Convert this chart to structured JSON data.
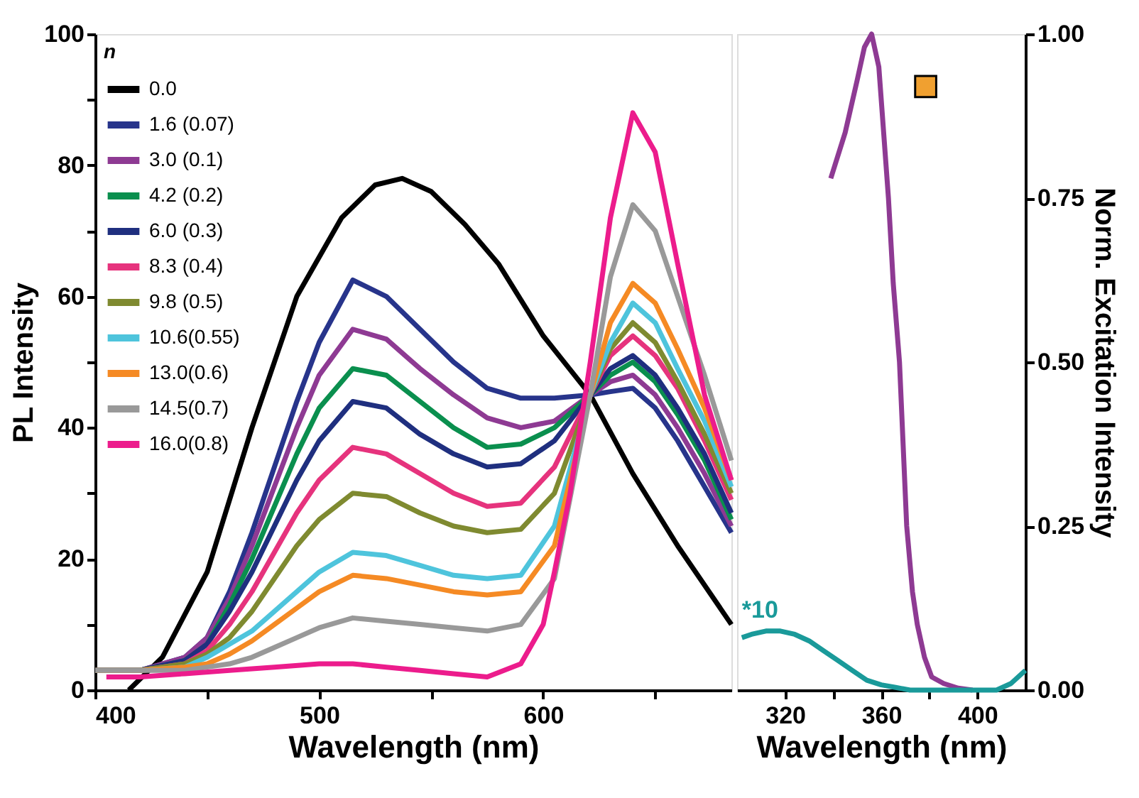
{
  "chart_data": [
    {
      "type": "line",
      "xlabel": "Wavelength (nm)",
      "ylabel": "PL Intensity",
      "legend_title": "n",
      "legend": "top left",
      "xlim": [
        400,
        684
      ],
      "xticks": [
        400,
        {
          "value": 450,
          "label": null
        },
        500,
        {
          "value": 550,
          "label": null
        },
        600,
        {
          "value": 650,
          "label": null
        }
      ],
      "ylim": [
        0,
        100
      ],
      "yticks": [
        0,
        {
          "value": 10,
          "label": null
        },
        20,
        {
          "value": 30,
          "label": null
        },
        40,
        {
          "value": 50,
          "label": null
        },
        60,
        {
          "value": 70,
          "label": null
        },
        80,
        {
          "value": 90,
          "label": null
        },
        100
      ],
      "series": [
        {
          "name": "0.0",
          "color": "#000000",
          "x": [
            415,
            430,
            450,
            470,
            490,
            510,
            525,
            537,
            550,
            565,
            580,
            600,
            621,
            640,
            660,
            684
          ],
          "values": [
            0,
            5,
            18,
            40,
            60,
            72,
            77,
            78,
            76,
            71,
            65,
            54,
            45,
            33,
            22,
            10
          ]
        },
        {
          "name": "1.6 (0.07)",
          "color": "#27348b",
          "x": [
            400,
            420,
            440,
            450,
            460,
            470,
            480,
            490,
            500,
            515,
            530,
            545,
            560,
            575,
            590,
            605,
            621,
            630,
            640,
            650,
            660,
            672,
            684
          ],
          "values": [
            3,
            3,
            5,
            8,
            15,
            24,
            34,
            44,
            53,
            62.5,
            60,
            55,
            50,
            46,
            44.5,
            44.5,
            45,
            45.5,
            46,
            43,
            38,
            31,
            24
          ]
        },
        {
          "name": "3.0 (0.1)",
          "color": "#8e3a93",
          "x": [
            400,
            420,
            440,
            450,
            460,
            470,
            480,
            490,
            500,
            515,
            530,
            545,
            560,
            575,
            590,
            605,
            621,
            630,
            640,
            650,
            660,
            672,
            684
          ],
          "values": [
            3,
            3,
            5,
            8,
            14,
            22,
            31,
            40,
            48,
            55,
            53.5,
            49,
            45,
            41.5,
            40,
            41,
            45,
            47,
            48,
            45,
            40,
            33,
            25
          ]
        },
        {
          "name": "4.2 (0.2)",
          "color": "#0a8f4e",
          "x": [
            400,
            420,
            440,
            450,
            460,
            470,
            480,
            490,
            500,
            515,
            530,
            545,
            560,
            575,
            590,
            605,
            621,
            630,
            640,
            650,
            660,
            672,
            684
          ],
          "values": [
            3,
            3,
            4.5,
            7,
            13,
            20,
            28,
            36,
            43,
            49,
            48,
            44,
            40,
            37,
            37.5,
            40,
            45,
            48,
            50,
            47,
            42,
            35,
            26
          ]
        },
        {
          "name": "6.0 (0.3)",
          "color": "#1f2f7f",
          "x": [
            400,
            420,
            440,
            450,
            460,
            470,
            480,
            490,
            500,
            515,
            530,
            545,
            560,
            575,
            590,
            605,
            621,
            630,
            640,
            650,
            660,
            672,
            684
          ],
          "values": [
            3,
            3,
            4.5,
            7,
            12,
            18,
            25,
            32,
            38,
            44,
            43,
            39,
            36,
            34,
            34.5,
            38,
            45,
            49,
            51,
            48,
            43,
            36,
            27
          ]
        },
        {
          "name": "8.3 (0.4)",
          "color": "#e6337d",
          "x": [
            400,
            420,
            440,
            450,
            460,
            470,
            480,
            490,
            500,
            515,
            530,
            545,
            560,
            575,
            590,
            605,
            621,
            630,
            640,
            650,
            660,
            672,
            684
          ],
          "values": [
            3,
            3,
            4,
            6,
            10,
            15,
            21,
            27,
            32,
            37,
            36,
            33,
            30,
            28,
            28.5,
            34,
            45,
            51,
            54,
            51,
            46,
            38,
            29
          ]
        },
        {
          "name": "9.8 (0.5)",
          "color": "#7f8a30",
          "x": [
            400,
            420,
            440,
            450,
            460,
            470,
            480,
            490,
            500,
            515,
            530,
            545,
            560,
            575,
            590,
            605,
            621,
            630,
            640,
            650,
            660,
            672,
            684
          ],
          "values": [
            3,
            3,
            4,
            5.5,
            8,
            12,
            17,
            22,
            26,
            30,
            29.5,
            27,
            25,
            24,
            24.5,
            30,
            45,
            52,
            56,
            53,
            47,
            39,
            30
          ]
        },
        {
          "name": "10.6(0.55)",
          "color": "#4ec4dc",
          "x": [
            400,
            420,
            440,
            450,
            460,
            470,
            480,
            490,
            500,
            515,
            530,
            545,
            560,
            575,
            590,
            605,
            621,
            630,
            640,
            650,
            660,
            672,
            684
          ],
          "values": [
            3,
            3,
            3.5,
            5,
            7,
            9,
            12,
            15,
            18,
            21,
            20.5,
            19,
            17.5,
            17,
            17.5,
            25,
            45,
            53,
            59,
            56,
            49,
            41,
            31
          ]
        },
        {
          "name": "13.0(0.6)",
          "color": "#f58a24",
          "x": [
            400,
            420,
            440,
            450,
            460,
            470,
            480,
            490,
            500,
            515,
            530,
            545,
            560,
            575,
            590,
            605,
            621,
            630,
            640,
            650,
            660,
            672,
            684
          ],
          "values": [
            3,
            3,
            3.5,
            4,
            5.5,
            7.5,
            10,
            12.5,
            15,
            17.5,
            17,
            16,
            15,
            14.5,
            15,
            22,
            45,
            56,
            62,
            59,
            52,
            43,
            32
          ]
        },
        {
          "name": "14.5(0.7)",
          "color": "#999999",
          "x": [
            400,
            420,
            440,
            450,
            460,
            470,
            480,
            490,
            500,
            515,
            530,
            545,
            560,
            575,
            590,
            605,
            621,
            630,
            640,
            650,
            660,
            672,
            684
          ],
          "values": [
            3,
            3,
            3,
            3.5,
            4,
            5,
            6.5,
            8,
            9.5,
            11,
            10.5,
            10,
            9.5,
            9,
            10,
            17,
            45,
            63,
            74,
            70,
            60,
            48,
            35
          ]
        },
        {
          "name": "16.0(0.8)",
          "color": "#ec1c8c",
          "x": [
            405,
            420,
            440,
            460,
            480,
            500,
            515,
            530,
            545,
            560,
            575,
            590,
            600,
            605,
            612,
            621,
            630,
            640,
            650,
            660,
            672,
            684
          ],
          "values": [
            2,
            2,
            2.5,
            3,
            3.5,
            4,
            4,
            3.5,
            3,
            2.5,
            2,
            4,
            10,
            18,
            30,
            50,
            72,
            88,
            82,
            65,
            45,
            32
          ]
        }
      ]
    },
    {
      "type": "line",
      "xlabel": "Wavelength (nm)",
      "y2label": "Norm. Excitation Intensity",
      "xlim": [
        300,
        420
      ],
      "xticks": [
        320,
        {
          "value": 340,
          "label": null
        },
        360,
        {
          "value": 380,
          "label": null
        },
        400
      ],
      "y2lim": [
        0,
        1
      ],
      "y2ticks": [
        {
          "value": 0,
          "label": "0.00"
        },
        0.25,
        {
          "value": 0.5,
          "label": "0.50"
        },
        0.75,
        {
          "value": 1,
          "label": "1.00"
        }
      ],
      "annotations": [
        "*10"
      ],
      "series": [
        {
          "axis": "y2",
          "color": "#8e3a93",
          "x": [
            339,
            345,
            350,
            353,
            356,
            359,
            361,
            363,
            365,
            367.6,
            370.6,
            373,
            375,
            378,
            381,
            386,
            392,
            398
          ],
          "values": [
            0.78,
            0.85,
            0.93,
            0.98,
            1.0,
            0.95,
            0.85,
            0.75,
            0.62,
            0.5,
            0.25,
            0.15,
            0.1,
            0.05,
            0.02,
            0.01,
            0.003,
            0
          ]
        },
        {
          "axis": "y2",
          "color": "#1a9a9a",
          "x": [
            302,
            306,
            312,
            318,
            324,
            330,
            336,
            342,
            348,
            354,
            360,
            366,
            372,
            380,
            390,
            400,
            408,
            414,
            420
          ],
          "values": [
            0.08,
            0.085,
            0.09,
            0.09,
            0.085,
            0.075,
            0.06,
            0.045,
            0.03,
            0.015,
            0.008,
            0.004,
            0,
            0,
            0,
            0,
            0,
            0.01,
            0.03
          ]
        },
        {
          "axis": "y2",
          "type": "scatter",
          "marker": "square",
          "color": "#f0a030",
          "x": [
            378.5
          ],
          "values": [
            0.92
          ]
        }
      ]
    }
  ]
}
